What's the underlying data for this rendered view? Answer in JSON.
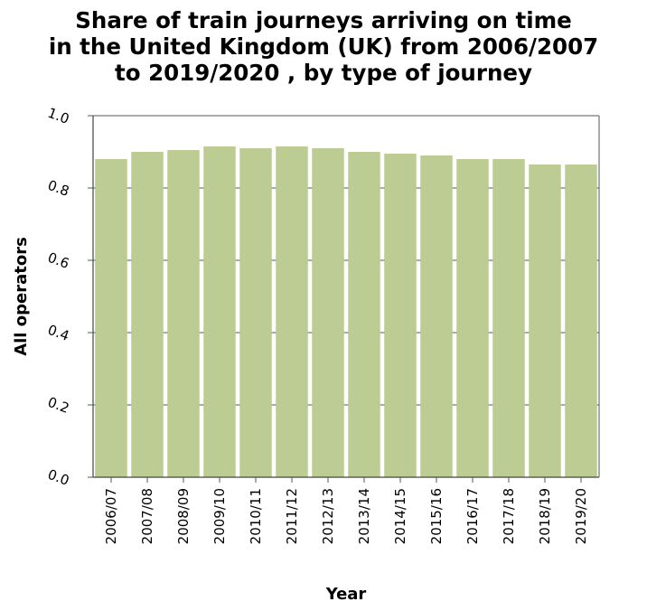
{
  "chart_data": {
    "type": "bar",
    "title": "Share of train journeys arriving on time\nin the United Kingdom (UK) from 2006/2007\nto 2019/2020 , by type of journey",
    "xlabel": "Year",
    "ylabel": "All operators",
    "categories": [
      "2006/07",
      "2007/08",
      "2008/09",
      "2009/10",
      "2010/11",
      "2011/12",
      "2012/13",
      "2013/14",
      "2014/15",
      "2015/16",
      "2016/17",
      "2017/18",
      "2018/19",
      "2019/20"
    ],
    "values": [
      0.88,
      0.9,
      0.905,
      0.915,
      0.91,
      0.915,
      0.91,
      0.9,
      0.895,
      0.89,
      0.88,
      0.88,
      0.865,
      0.865
    ],
    "ylim": [
      0,
      1.0
    ],
    "yticks": [
      "0.0",
      "0.2",
      "0.4",
      "0.6",
      "0.8",
      "1.0"
    ],
    "grid": "horizontal",
    "bar_color": "#bccc92",
    "background_color": "#ffffff"
  }
}
